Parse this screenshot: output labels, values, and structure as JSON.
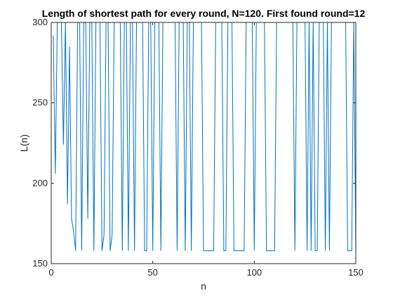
{
  "chart_data": {
    "type": "line",
    "title": "Length of shortest path for every round, N=120. First found round=12",
    "xlabel": "n",
    "ylabel": "L(n)",
    "xlim": [
      0,
      150
    ],
    "ylim": [
      150,
      300
    ],
    "xticks": [
      0,
      50,
      100,
      150
    ],
    "yticks": [
      150,
      200,
      250,
      300
    ],
    "grid": false,
    "line_color": "#0072BD",
    "series": [
      {
        "x": [
          1,
          2,
          3,
          4,
          5,
          6,
          7,
          8,
          9,
          10,
          11,
          12,
          13,
          14,
          15,
          16,
          17,
          18,
          19,
          20,
          21,
          22,
          23,
          24,
          25,
          26,
          27,
          28,
          29,
          30,
          31,
          32,
          33,
          34,
          35,
          36,
          37,
          38,
          39,
          40,
          41,
          42,
          43,
          44,
          45,
          46,
          47,
          48,
          49,
          50,
          51,
          52,
          53,
          54,
          55,
          56,
          57,
          58,
          59,
          60,
          61,
          62,
          63,
          64,
          65,
          66,
          67,
          68,
          69,
          70,
          71,
          72,
          73,
          74,
          75,
          76,
          77,
          78,
          79,
          80,
          81,
          82,
          83,
          84,
          85,
          86,
          87,
          88,
          89,
          90,
          91,
          92,
          93,
          94,
          95,
          96,
          97,
          98,
          99,
          100,
          101,
          102,
          103,
          104,
          105,
          106,
          107,
          108,
          109,
          110,
          111,
          112,
          113,
          114,
          115,
          116,
          117,
          118,
          119,
          120,
          121,
          122,
          123,
          124,
          125,
          126,
          127,
          128,
          129,
          130,
          131,
          132,
          133,
          134,
          135,
          136,
          137,
          138,
          139,
          140,
          141,
          142,
          143,
          144,
          145,
          146,
          147,
          148,
          149,
          150
        ],
        "values": [
          292,
          206,
          300,
          300,
          300,
          224,
          300,
          187,
          285,
          178,
          170,
          158,
          300,
          300,
          158,
          300,
          300,
          178,
          300,
          300,
          158,
          300,
          300,
          300,
          158,
          168,
          300,
          300,
          158,
          168,
          300,
          300,
          300,
          300,
          158,
          300,
          300,
          158,
          300,
          300,
          158,
          300,
          300,
          300,
          300,
          158,
          158,
          300,
          300,
          158,
          300,
          300,
          300,
          158,
          300,
          300,
          300,
          300,
          300,
          300,
          300,
          158,
          300,
          300,
          300,
          158,
          300,
          300,
          158,
          300,
          300,
          300,
          300,
          300,
          158,
          158,
          158,
          158,
          158,
          158,
          300,
          300,
          300,
          300,
          158,
          158,
          300,
          300,
          300,
          158,
          158,
          158,
          158,
          158,
          158,
          300,
          300,
          300,
          300,
          158,
          300,
          300,
          300,
          300,
          300,
          158,
          158,
          158,
          158,
          158,
          300,
          300,
          300,
          300,
          300,
          300,
          300,
          300,
          300,
          158,
          300,
          300,
          300,
          300,
          300,
          158,
          300,
          158,
          300,
          158,
          158,
          300,
          300,
          300,
          158,
          300,
          158,
          300,
          300,
          300,
          300,
          300,
          300,
          300,
          300,
          158,
          158,
          158,
          300,
          158
        ]
      }
    ]
  }
}
